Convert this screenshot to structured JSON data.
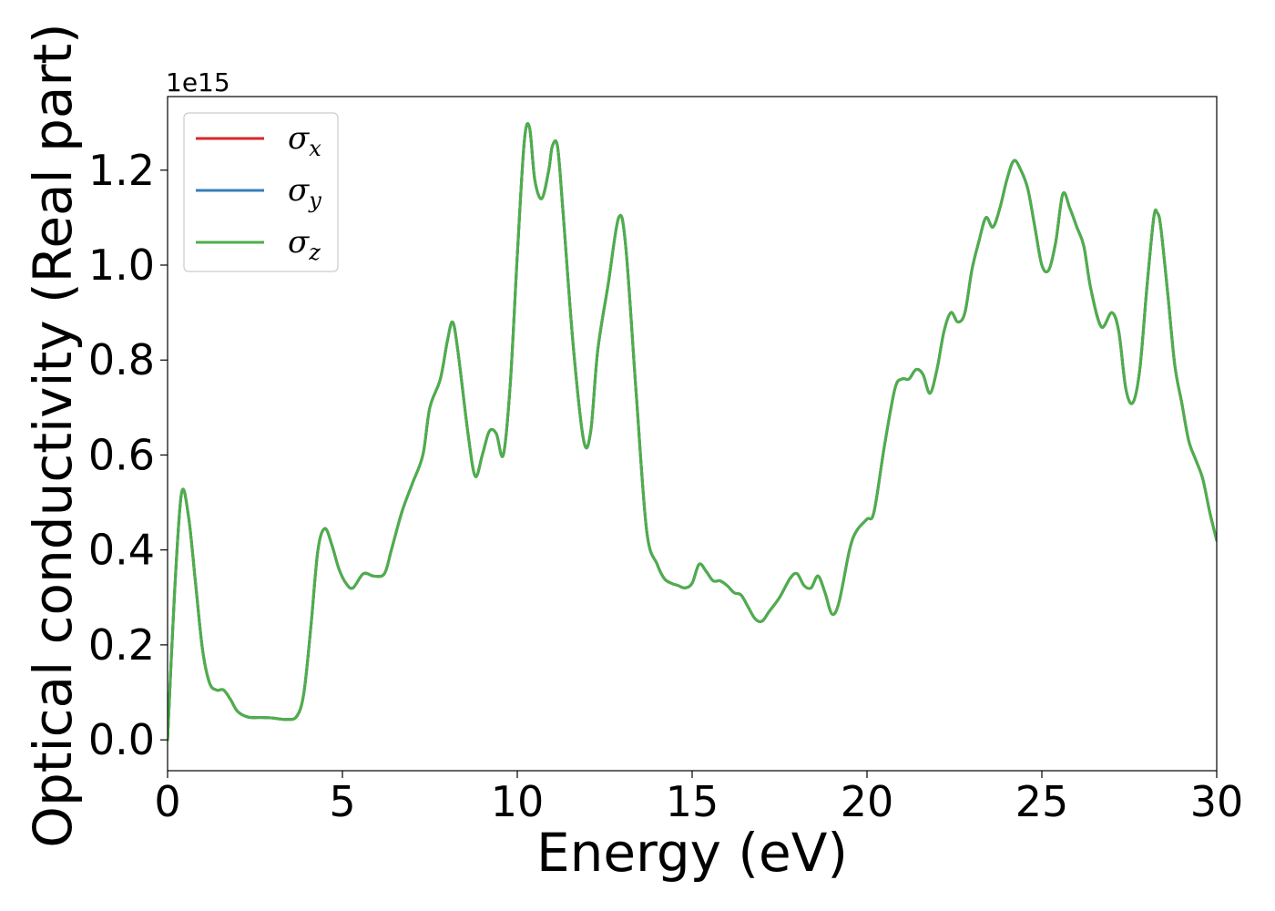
{
  "chart_data": {
    "type": "line",
    "title": "",
    "xlabel": "Energy (eV)",
    "ylabel": "Optical conductivity (Real part)",
    "y_offset_label": "1e15",
    "xlim": [
      0,
      30
    ],
    "ylim": [
      -0.065,
      1.355
    ],
    "x_ticks": [
      0,
      5,
      10,
      15,
      20,
      25,
      30
    ],
    "x_tick_labels": [
      "0",
      "5",
      "10",
      "15",
      "20",
      "25",
      "30"
    ],
    "y_ticks": [
      0.0,
      0.2,
      0.4,
      0.6,
      0.8,
      1.0,
      1.2
    ],
    "y_tick_labels": [
      "0.0",
      "0.2",
      "0.4",
      "0.6",
      "0.8",
      "1.0",
      "1.2"
    ],
    "grid": false,
    "legend_position": "top-left",
    "legend": [
      {
        "symbol": "σ",
        "sub": "x",
        "color": "#d62728"
      },
      {
        "symbol": "σ",
        "sub": "y",
        "color": "#377eb8"
      },
      {
        "symbol": "σ",
        "sub": "z",
        "color": "#4daf4a"
      }
    ],
    "x": [
      0,
      0.2,
      0.4,
      0.6,
      0.8,
      1.0,
      1.2,
      1.4,
      1.6,
      1.8,
      2.0,
      2.3,
      2.7,
      3.0,
      3.4,
      3.7,
      3.9,
      4.1,
      4.3,
      4.5,
      4.7,
      4.9,
      5.1,
      5.3,
      5.6,
      5.9,
      6.2,
      6.4,
      6.7,
      7.0,
      7.3,
      7.5,
      7.8,
      8.0,
      8.15,
      8.3,
      8.6,
      8.8,
      9.0,
      9.2,
      9.4,
      9.6,
      9.8,
      10.0,
      10.2,
      10.35,
      10.5,
      10.7,
      10.9,
      11.0,
      11.15,
      11.3,
      11.6,
      11.9,
      12.1,
      12.3,
      12.6,
      12.9,
      13.1,
      13.4,
      13.7,
      14.0,
      14.2,
      14.4,
      14.6,
      14.8,
      15.0,
      15.2,
      15.4,
      15.6,
      15.8,
      16.0,
      16.2,
      16.4,
      16.6,
      16.8,
      17.0,
      17.2,
      17.5,
      17.8,
      18.0,
      18.2,
      18.4,
      18.6,
      18.8,
      19.0,
      19.2,
      19.5,
      19.7,
      20.0,
      20.2,
      20.5,
      20.8,
      21.0,
      21.2,
      21.4,
      21.6,
      21.8,
      22.0,
      22.2,
      22.4,
      22.6,
      22.8,
      23.0,
      23.2,
      23.4,
      23.6,
      23.8,
      24.0,
      24.2,
      24.4,
      24.6,
      24.8,
      25.0,
      25.2,
      25.4,
      25.6,
      25.8,
      26.0,
      26.2,
      26.4,
      26.7,
      27.0,
      27.2,
      27.4,
      27.6,
      27.8,
      28.0,
      28.2,
      28.3,
      28.4,
      28.6,
      28.8,
      29.0,
      29.2,
      29.4,
      29.6,
      29.8,
      30.0
    ],
    "series": [
      {
        "name": "σx",
        "color": "#d62728",
        "values": [
          0.0,
          0.31,
          0.52,
          0.47,
          0.33,
          0.19,
          0.12,
          0.105,
          0.105,
          0.085,
          0.06,
          0.048,
          0.047,
          0.046,
          0.043,
          0.05,
          0.1,
          0.24,
          0.4,
          0.445,
          0.41,
          0.36,
          0.33,
          0.32,
          0.35,
          0.345,
          0.35,
          0.4,
          0.48,
          0.54,
          0.6,
          0.7,
          0.76,
          0.84,
          0.88,
          0.82,
          0.64,
          0.555,
          0.6,
          0.65,
          0.645,
          0.6,
          0.75,
          1.02,
          1.26,
          1.29,
          1.18,
          1.14,
          1.2,
          1.25,
          1.25,
          1.12,
          0.83,
          0.63,
          0.65,
          0.82,
          0.96,
          1.1,
          1.04,
          0.73,
          0.44,
          0.37,
          0.34,
          0.33,
          0.325,
          0.32,
          0.33,
          0.37,
          0.355,
          0.335,
          0.335,
          0.325,
          0.31,
          0.305,
          0.28,
          0.255,
          0.25,
          0.27,
          0.3,
          0.34,
          0.35,
          0.325,
          0.32,
          0.345,
          0.31,
          0.265,
          0.29,
          0.4,
          0.44,
          0.465,
          0.48,
          0.62,
          0.74,
          0.76,
          0.76,
          0.78,
          0.77,
          0.73,
          0.78,
          0.86,
          0.9,
          0.88,
          0.9,
          0.99,
          1.05,
          1.1,
          1.08,
          1.12,
          1.18,
          1.22,
          1.2,
          1.16,
          1.08,
          1.0,
          0.99,
          1.05,
          1.15,
          1.12,
          1.08,
          1.04,
          0.95,
          0.87,
          0.9,
          0.86,
          0.74,
          0.71,
          0.78,
          0.95,
          1.1,
          1.11,
          1.08,
          0.94,
          0.79,
          0.71,
          0.63,
          0.59,
          0.55,
          0.48,
          0.42
        ]
      },
      {
        "name": "σy",
        "color": "#377eb8",
        "values": [
          0.0,
          0.31,
          0.52,
          0.47,
          0.33,
          0.19,
          0.12,
          0.105,
          0.105,
          0.085,
          0.06,
          0.048,
          0.047,
          0.046,
          0.043,
          0.05,
          0.1,
          0.24,
          0.4,
          0.445,
          0.41,
          0.36,
          0.33,
          0.32,
          0.35,
          0.345,
          0.35,
          0.4,
          0.48,
          0.54,
          0.6,
          0.7,
          0.76,
          0.84,
          0.88,
          0.82,
          0.64,
          0.555,
          0.6,
          0.65,
          0.645,
          0.6,
          0.75,
          1.02,
          1.26,
          1.29,
          1.18,
          1.14,
          1.2,
          1.25,
          1.25,
          1.12,
          0.83,
          0.63,
          0.65,
          0.82,
          0.96,
          1.1,
          1.04,
          0.73,
          0.44,
          0.37,
          0.34,
          0.33,
          0.325,
          0.32,
          0.33,
          0.37,
          0.355,
          0.335,
          0.335,
          0.325,
          0.31,
          0.305,
          0.28,
          0.255,
          0.25,
          0.27,
          0.3,
          0.34,
          0.35,
          0.325,
          0.32,
          0.345,
          0.31,
          0.265,
          0.29,
          0.4,
          0.44,
          0.465,
          0.48,
          0.62,
          0.74,
          0.76,
          0.76,
          0.78,
          0.77,
          0.73,
          0.78,
          0.86,
          0.9,
          0.88,
          0.9,
          0.99,
          1.05,
          1.1,
          1.08,
          1.12,
          1.18,
          1.22,
          1.2,
          1.16,
          1.08,
          1.0,
          0.99,
          1.05,
          1.15,
          1.12,
          1.08,
          1.04,
          0.95,
          0.87,
          0.9,
          0.86,
          0.74,
          0.71,
          0.78,
          0.95,
          1.1,
          1.11,
          1.08,
          0.94,
          0.79,
          0.71,
          0.63,
          0.59,
          0.55,
          0.48,
          0.42
        ]
      },
      {
        "name": "σz",
        "color": "#4daf4a",
        "values": [
          0.0,
          0.31,
          0.52,
          0.47,
          0.33,
          0.19,
          0.12,
          0.105,
          0.105,
          0.085,
          0.06,
          0.048,
          0.047,
          0.046,
          0.043,
          0.05,
          0.1,
          0.24,
          0.4,
          0.445,
          0.41,
          0.36,
          0.33,
          0.32,
          0.35,
          0.345,
          0.35,
          0.4,
          0.48,
          0.54,
          0.6,
          0.7,
          0.76,
          0.84,
          0.88,
          0.82,
          0.64,
          0.555,
          0.6,
          0.65,
          0.645,
          0.6,
          0.75,
          1.02,
          1.26,
          1.29,
          1.18,
          1.14,
          1.2,
          1.25,
          1.25,
          1.12,
          0.83,
          0.63,
          0.65,
          0.82,
          0.96,
          1.1,
          1.04,
          0.73,
          0.44,
          0.37,
          0.34,
          0.33,
          0.325,
          0.32,
          0.33,
          0.37,
          0.355,
          0.335,
          0.335,
          0.325,
          0.31,
          0.305,
          0.28,
          0.255,
          0.25,
          0.27,
          0.3,
          0.34,
          0.35,
          0.325,
          0.32,
          0.345,
          0.31,
          0.265,
          0.29,
          0.4,
          0.44,
          0.465,
          0.48,
          0.62,
          0.74,
          0.76,
          0.76,
          0.78,
          0.77,
          0.73,
          0.78,
          0.86,
          0.9,
          0.88,
          0.9,
          0.99,
          1.05,
          1.1,
          1.08,
          1.12,
          1.18,
          1.22,
          1.2,
          1.16,
          1.08,
          1.0,
          0.99,
          1.05,
          1.15,
          1.12,
          1.08,
          1.04,
          0.95,
          0.87,
          0.9,
          0.86,
          0.74,
          0.71,
          0.78,
          0.95,
          1.1,
          1.11,
          1.08,
          0.94,
          0.79,
          0.71,
          0.63,
          0.59,
          0.55,
          0.48,
          0.42
        ]
      }
    ]
  }
}
